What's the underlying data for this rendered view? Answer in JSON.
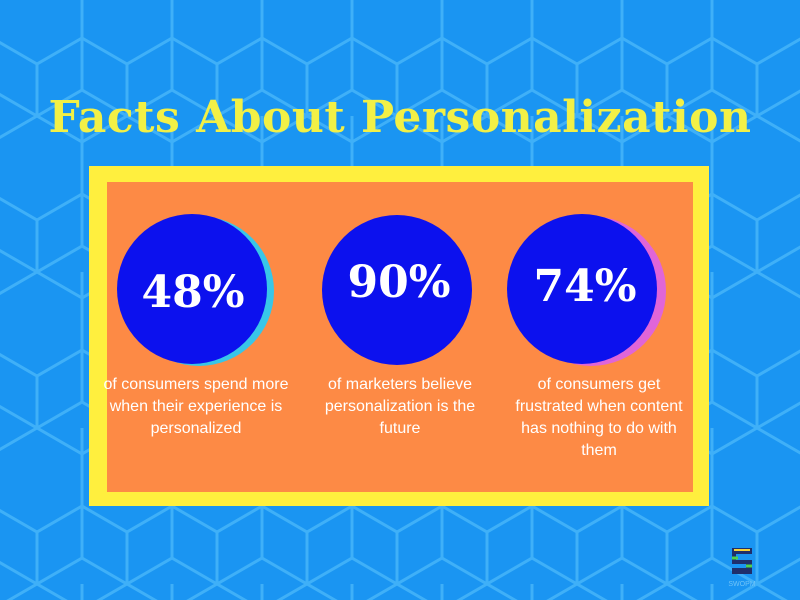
{
  "title": "Facts About Personalization",
  "colors": {
    "background": "#1a95f2",
    "hex_lines": "#3fb0f8",
    "title": "#f2f046",
    "frame": "#ffef3e",
    "panel": "#fd8a45",
    "circle": "#0c11ee",
    "text": "#ffffff"
  },
  "stats": [
    {
      "value": "48%",
      "description": "of consumers spend more when their experience is personalized"
    },
    {
      "value": "90%",
      "description": "of marketers believe personalization is the future"
    },
    {
      "value": "74%",
      "description": "of consumers get frustrated when content has nothing to do with them"
    }
  ],
  "logo": {
    "icon": "s-logo-icon",
    "text": "SWOPM"
  }
}
